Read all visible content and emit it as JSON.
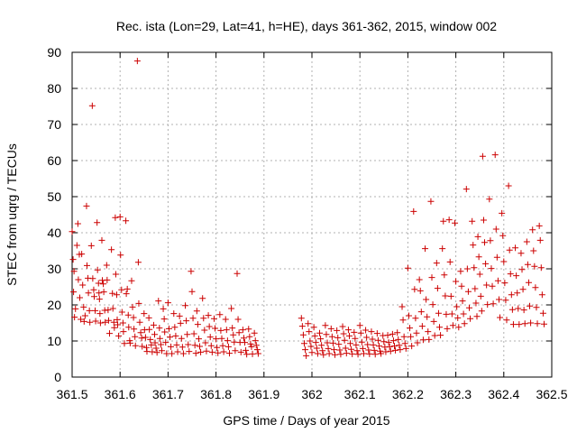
{
  "chart_data": {
    "type": "scatter",
    "title": "Rec. ista (Lon=29, Lat=41, h=HE), days 361-362, 2015, window 002",
    "xlabel": "GPS time / Days of year 2015",
    "ylabel": "STEC from uqrg / TECUs",
    "xlim": [
      361.5,
      362.5
    ],
    "ylim": [
      0,
      90
    ],
    "x_ticks": [
      361.5,
      361.6,
      361.7,
      361.8,
      361.9,
      362.0,
      362.1,
      362.2,
      362.3,
      362.4,
      362.5
    ],
    "x_tick_labels": [
      "361.5",
      "361.6",
      "361.7",
      "361.8",
      "361.9",
      "362",
      "362.1",
      "362.2",
      "362.3",
      "362.4",
      "362.5"
    ],
    "y_ticks": [
      0,
      10,
      20,
      30,
      40,
      50,
      60,
      70,
      80,
      90
    ],
    "y_tick_labels": [
      "0",
      "10",
      "20",
      "30",
      "40",
      "50",
      "60",
      "70",
      "80",
      "90"
    ],
    "grid": true,
    "marker": "plus",
    "color": "#cc0000",
    "points": [
      [
        361.5,
        40.3
      ],
      [
        361.502,
        32.6
      ],
      [
        361.504,
        29.3
      ],
      [
        361.503,
        23.6
      ],
      [
        361.505,
        16.6
      ],
      [
        361.507,
        18.9
      ],
      [
        361.51,
        36.5
      ],
      [
        361.512,
        42.5
      ],
      [
        361.513,
        27.0
      ],
      [
        361.515,
        34.0
      ],
      [
        361.516,
        22.0
      ],
      [
        361.518,
        16.0
      ],
      [
        361.52,
        34.1
      ],
      [
        361.522,
        25.5
      ],
      [
        361.524,
        19.4
      ],
      [
        361.525,
        15.4
      ],
      [
        361.527,
        17.0
      ],
      [
        361.53,
        47.4
      ],
      [
        361.531,
        30.9
      ],
      [
        361.533,
        27.4
      ],
      [
        361.534,
        23.3
      ],
      [
        361.536,
        18.4
      ],
      [
        361.537,
        15.2
      ],
      [
        361.54,
        36.4
      ],
      [
        361.542,
        75.2
      ],
      [
        361.543,
        27.3
      ],
      [
        361.545,
        24.2
      ],
      [
        361.546,
        22.3
      ],
      [
        361.548,
        18.4
      ],
      [
        361.549,
        15.5
      ],
      [
        361.552,
        42.8
      ],
      [
        361.553,
        29.7
      ],
      [
        361.555,
        26.0
      ],
      [
        361.556,
        23.3
      ],
      [
        361.557,
        21.6
      ],
      [
        361.558,
        17.6
      ],
      [
        361.559,
        15.0
      ],
      [
        361.562,
        37.9
      ],
      [
        361.563,
        26.8
      ],
      [
        361.565,
        25.8
      ],
      [
        361.566,
        23.6
      ],
      [
        361.568,
        18.5
      ],
      [
        361.569,
        15.2
      ],
      [
        361.572,
        31.0
      ],
      [
        361.573,
        26.9
      ],
      [
        361.575,
        18.6
      ],
      [
        361.576,
        15.7
      ],
      [
        361.578,
        12.1
      ],
      [
        361.582,
        35.3
      ],
      [
        361.584,
        23.2
      ],
      [
        361.585,
        19.0
      ],
      [
        361.587,
        15.2
      ],
      [
        361.588,
        13.7
      ],
      [
        361.59,
        44.2
      ],
      [
        361.591,
        28.5
      ],
      [
        361.593,
        22.8
      ],
      [
        361.594,
        15.9
      ],
      [
        361.595,
        14.5
      ],
      [
        361.597,
        11.4
      ],
      [
        361.6,
        44.4
      ],
      [
        361.601,
        33.8
      ],
      [
        361.603,
        24.2
      ],
      [
        361.604,
        18.0
      ],
      [
        361.606,
        15.0
      ],
      [
        361.607,
        12.6
      ],
      [
        361.609,
        9.3
      ],
      [
        361.612,
        43.3
      ],
      [
        361.613,
        23.1
      ],
      [
        361.615,
        24.4
      ],
      [
        361.617,
        17.2
      ],
      [
        361.618,
        13.8
      ],
      [
        361.62,
        10.1
      ],
      [
        361.621,
        9.4
      ],
      [
        361.624,
        26.7
      ],
      [
        361.626,
        19.4
      ],
      [
        361.628,
        16.5
      ],
      [
        361.629,
        13.3
      ],
      [
        361.631,
        11.2
      ],
      [
        361.632,
        8.7
      ],
      [
        361.636,
        87.6
      ],
      [
        361.638,
        31.8
      ],
      [
        361.639,
        20.4
      ],
      [
        361.641,
        15.2
      ],
      [
        361.643,
        12.3
      ],
      [
        361.645,
        10.8
      ],
      [
        361.646,
        8.5
      ],
      [
        361.65,
        17.6
      ],
      [
        361.651,
        13.1
      ],
      [
        361.653,
        11.0
      ],
      [
        361.655,
        8.2
      ],
      [
        361.656,
        7.1
      ],
      [
        361.66,
        16.4
      ],
      [
        361.661,
        13.2
      ],
      [
        361.663,
        10.4
      ],
      [
        361.665,
        8.9
      ],
      [
        361.667,
        7.0
      ],
      [
        361.67,
        14.4
      ],
      [
        361.672,
        11.8
      ],
      [
        361.673,
        9.5
      ],
      [
        361.675,
        8.0
      ],
      [
        361.677,
        6.8
      ],
      [
        361.68,
        21.1
      ],
      [
        361.682,
        13.6
      ],
      [
        361.683,
        10.7
      ],
      [
        361.685,
        9.0
      ],
      [
        361.687,
        7.3
      ],
      [
        361.69,
        18.9
      ],
      [
        361.692,
        16.1
      ],
      [
        361.693,
        12.5
      ],
      [
        361.695,
        9.6
      ],
      [
        361.697,
        6.5
      ],
      [
        361.7,
        20.6
      ],
      [
        361.702,
        13.4
      ],
      [
        361.704,
        11.1
      ],
      [
        361.706,
        8.4
      ],
      [
        361.708,
        6.5
      ],
      [
        361.712,
        17.6
      ],
      [
        361.714,
        13.8
      ],
      [
        361.716,
        11.4
      ],
      [
        361.718,
        8.9
      ],
      [
        361.72,
        7.0
      ],
      [
        361.724,
        16.9
      ],
      [
        361.726,
        14.9
      ],
      [
        361.728,
        10.7
      ],
      [
        361.73,
        8.3
      ],
      [
        361.732,
        6.5
      ],
      [
        361.736,
        19.8
      ],
      [
        361.738,
        15.6
      ],
      [
        361.74,
        11.8
      ],
      [
        361.742,
        9.0
      ],
      [
        361.744,
        7.1
      ],
      [
        361.748,
        29.3
      ],
      [
        361.75,
        23.7
      ],
      [
        361.752,
        16.3
      ],
      [
        361.754,
        12.0
      ],
      [
        361.756,
        8.8
      ],
      [
        361.758,
        6.6
      ],
      [
        361.76,
        18.3
      ],
      [
        361.762,
        14.6
      ],
      [
        361.764,
        10.6
      ],
      [
        361.766,
        8.5
      ],
      [
        361.768,
        6.9
      ],
      [
        361.772,
        21.8
      ],
      [
        361.774,
        16.3
      ],
      [
        361.776,
        13.0
      ],
      [
        361.778,
        9.5
      ],
      [
        361.78,
        7.2
      ],
      [
        361.784,
        17.1
      ],
      [
        361.786,
        14.0
      ],
      [
        361.788,
        11.1
      ],
      [
        361.79,
        8.7
      ],
      [
        361.792,
        6.9
      ],
      [
        361.796,
        16.2
      ],
      [
        361.798,
        13.5
      ],
      [
        361.8,
        10.6
      ],
      [
        361.802,
        8.2
      ],
      [
        361.804,
        6.7
      ],
      [
        361.808,
        17.3
      ],
      [
        361.81,
        12.9
      ],
      [
        361.812,
        10.7
      ],
      [
        361.814,
        8.7
      ],
      [
        361.816,
        7.0
      ],
      [
        361.82,
        16.0
      ],
      [
        361.822,
        13.1
      ],
      [
        361.824,
        10.1
      ],
      [
        361.826,
        8.4
      ],
      [
        361.828,
        6.6
      ],
      [
        361.832,
        19.0
      ],
      [
        361.834,
        13.6
      ],
      [
        361.836,
        11.7
      ],
      [
        361.838,
        9.7
      ],
      [
        361.84,
        7.3
      ],
      [
        361.844,
        28.7
      ],
      [
        361.846,
        16.0
      ],
      [
        361.848,
        12.3
      ],
      [
        361.85,
        9.6
      ],
      [
        361.852,
        6.9
      ],
      [
        361.856,
        13.1
      ],
      [
        361.858,
        10.8
      ],
      [
        361.86,
        9.6
      ],
      [
        361.862,
        7.4
      ],
      [
        361.864,
        6.3
      ],
      [
        361.868,
        13.3
      ],
      [
        361.87,
        11.2
      ],
      [
        361.872,
        9.2
      ],
      [
        361.874,
        8.4
      ],
      [
        361.876,
        6.4
      ],
      [
        361.88,
        12.2
      ],
      [
        361.882,
        10.1
      ],
      [
        361.884,
        8.8
      ],
      [
        361.886,
        7.6
      ],
      [
        361.888,
        6.5
      ],
      [
        361.978,
        16.3
      ],
      [
        361.98,
        14.1
      ],
      [
        361.982,
        11.7
      ],
      [
        361.984,
        9.3
      ],
      [
        361.986,
        7.6
      ],
      [
        361.988,
        5.9
      ],
      [
        361.992,
        14.8
      ],
      [
        361.994,
        12.6
      ],
      [
        361.996,
        10.0
      ],
      [
        361.998,
        8.5
      ],
      [
        362.0,
        6.8
      ],
      [
        362.004,
        13.8
      ],
      [
        362.006,
        11.4
      ],
      [
        362.008,
        9.6
      ],
      [
        362.01,
        8.0
      ],
      [
        362.012,
        6.5
      ],
      [
        362.016,
        12.2
      ],
      [
        362.018,
        10.6
      ],
      [
        362.02,
        8.8
      ],
      [
        362.022,
        7.3
      ],
      [
        362.024,
        6.2
      ],
      [
        362.028,
        14.3
      ],
      [
        362.03,
        11.8
      ],
      [
        362.032,
        9.5
      ],
      [
        362.034,
        7.9
      ],
      [
        362.036,
        6.5
      ],
      [
        362.04,
        13.4
      ],
      [
        362.042,
        11.2
      ],
      [
        362.044,
        9.4
      ],
      [
        362.046,
        7.6
      ],
      [
        362.048,
        6.2
      ],
      [
        362.052,
        12.9
      ],
      [
        362.054,
        10.9
      ],
      [
        362.056,
        9.1
      ],
      [
        362.058,
        7.5
      ],
      [
        362.06,
        6.3
      ],
      [
        362.064,
        14.0
      ],
      [
        362.066,
        12.0
      ],
      [
        362.068,
        10.2
      ],
      [
        362.07,
        8.0
      ],
      [
        362.072,
        6.6
      ],
      [
        362.076,
        13.1
      ],
      [
        362.078,
        11.4
      ],
      [
        362.08,
        9.3
      ],
      [
        362.082,
        7.7
      ],
      [
        362.084,
        6.4
      ],
      [
        362.088,
        12.4
      ],
      [
        362.09,
        10.7
      ],
      [
        362.092,
        8.9
      ],
      [
        362.094,
        7.3
      ],
      [
        362.096,
        6.3
      ],
      [
        362.1,
        14.3
      ],
      [
        362.102,
        12.2
      ],
      [
        362.104,
        9.7
      ],
      [
        362.106,
        7.9
      ],
      [
        362.108,
        6.5
      ],
      [
        362.112,
        13.0
      ],
      [
        362.114,
        11.0
      ],
      [
        362.116,
        9.0
      ],
      [
        362.118,
        7.5
      ],
      [
        362.12,
        6.4
      ],
      [
        362.124,
        12.6
      ],
      [
        362.126,
        10.5
      ],
      [
        362.128,
        8.9
      ],
      [
        362.13,
        7.4
      ],
      [
        362.132,
        6.3
      ],
      [
        362.136,
        12.1
      ],
      [
        362.138,
        10.2
      ],
      [
        362.14,
        8.6
      ],
      [
        362.142,
        7.2
      ],
      [
        362.144,
        6.5
      ],
      [
        362.148,
        11.5
      ],
      [
        362.15,
        9.8
      ],
      [
        362.152,
        8.3
      ],
      [
        362.154,
        7.0
      ],
      [
        362.158,
        11.6
      ],
      [
        362.16,
        9.6
      ],
      [
        362.162,
        8.4
      ],
      [
        362.164,
        7.2
      ],
      [
        362.168,
        11.9
      ],
      [
        362.17,
        10.1
      ],
      [
        362.172,
        8.6
      ],
      [
        362.174,
        7.4
      ],
      [
        362.178,
        12.3
      ],
      [
        362.18,
        10.4
      ],
      [
        362.182,
        8.8
      ],
      [
        362.184,
        7.6
      ],
      [
        362.188,
        19.5
      ],
      [
        362.19,
        15.8
      ],
      [
        362.192,
        11.2
      ],
      [
        362.194,
        9.3
      ],
      [
        362.196,
        7.9
      ],
      [
        362.2,
        30.2
      ],
      [
        362.202,
        17.0
      ],
      [
        362.204,
        13.6
      ],
      [
        362.206,
        11.2
      ],
      [
        362.208,
        8.6
      ],
      [
        362.212,
        45.9
      ],
      [
        362.214,
        24.3
      ],
      [
        362.216,
        16.3
      ],
      [
        362.218,
        12.2
      ],
      [
        362.22,
        9.5
      ],
      [
        362.224,
        27.0
      ],
      [
        362.226,
        23.9
      ],
      [
        362.228,
        18.1
      ],
      [
        362.23,
        14.1
      ],
      [
        362.232,
        10.3
      ],
      [
        362.236,
        35.6
      ],
      [
        362.238,
        21.5
      ],
      [
        362.24,
        16.7
      ],
      [
        362.242,
        12.6
      ],
      [
        362.244,
        10.4
      ],
      [
        362.248,
        48.7
      ],
      [
        362.25,
        27.6
      ],
      [
        362.252,
        20.1
      ],
      [
        362.254,
        15.4
      ],
      [
        362.256,
        11.5
      ],
      [
        362.26,
        31.6
      ],
      [
        362.262,
        24.6
      ],
      [
        362.264,
        17.7
      ],
      [
        362.266,
        13.8
      ],
      [
        362.268,
        11.6
      ],
      [
        362.272,
        35.6
      ],
      [
        362.274,
        43.2
      ],
      [
        362.276,
        28.3
      ],
      [
        362.278,
        22.5
      ],
      [
        362.28,
        17.4
      ],
      [
        362.282,
        13.4
      ],
      [
        362.286,
        43.6
      ],
      [
        362.288,
        31.9
      ],
      [
        362.29,
        22.4
      ],
      [
        362.292,
        17.5
      ],
      [
        362.294,
        14.3
      ],
      [
        362.298,
        42.7
      ],
      [
        362.3,
        26.5
      ],
      [
        362.302,
        19.5
      ],
      [
        362.304,
        16.4
      ],
      [
        362.306,
        13.8
      ],
      [
        362.31,
        29.3
      ],
      [
        362.312,
        25.2
      ],
      [
        362.314,
        21.1
      ],
      [
        362.316,
        17.5
      ],
      [
        362.318,
        14.8
      ],
      [
        362.322,
        52.1
      ],
      [
        362.324,
        30.0
      ],
      [
        362.326,
        23.7
      ],
      [
        362.328,
        19.2
      ],
      [
        362.33,
        16.2
      ],
      [
        362.334,
        43.2
      ],
      [
        362.336,
        36.6
      ],
      [
        362.338,
        30.3
      ],
      [
        362.34,
        24.5
      ],
      [
        362.342,
        20.5
      ],
      [
        362.344,
        16.8
      ],
      [
        362.346,
        38.9
      ],
      [
        362.348,
        33.3
      ],
      [
        362.35,
        28.5
      ],
      [
        362.352,
        22.4
      ],
      [
        362.354,
        18.3
      ],
      [
        362.356,
        61.2
      ],
      [
        362.358,
        43.5
      ],
      [
        362.36,
        37.3
      ],
      [
        362.362,
        31.4
      ],
      [
        362.364,
        25.5
      ],
      [
        362.366,
        20.1
      ],
      [
        362.37,
        49.3
      ],
      [
        362.372,
        37.8
      ],
      [
        362.374,
        30.1
      ],
      [
        362.376,
        25.2
      ],
      [
        362.378,
        20.3
      ],
      [
        362.382,
        61.6
      ],
      [
        362.384,
        41.0
      ],
      [
        362.386,
        33.2
      ],
      [
        362.388,
        26.7
      ],
      [
        362.39,
        21.5
      ],
      [
        362.392,
        16.5
      ],
      [
        362.396,
        45.4
      ],
      [
        362.398,
        39.2
      ],
      [
        362.4,
        32.0
      ],
      [
        362.402,
        26.1
      ],
      [
        362.404,
        21.3
      ],
      [
        362.406,
        15.8
      ],
      [
        362.41,
        53.0
      ],
      [
        362.412,
        35.2
      ],
      [
        362.414,
        28.6
      ],
      [
        362.416,
        22.8
      ],
      [
        362.418,
        18.7
      ],
      [
        362.42,
        14.6
      ],
      [
        362.424,
        35.8
      ],
      [
        362.426,
        28.1
      ],
      [
        362.428,
        23.3
      ],
      [
        362.43,
        19.0
      ],
      [
        362.432,
        14.6
      ],
      [
        362.436,
        34.3
      ],
      [
        362.438,
        29.8
      ],
      [
        362.44,
        24.3
      ],
      [
        362.442,
        18.6
      ],
      [
        362.444,
        14.8
      ],
      [
        362.448,
        37.5
      ],
      [
        362.45,
        31.2
      ],
      [
        362.452,
        26.2
      ],
      [
        362.454,
        19.7
      ],
      [
        362.456,
        15.0
      ],
      [
        362.46,
        40.8
      ],
      [
        362.462,
        35.0
      ],
      [
        362.464,
        30.7
      ],
      [
        362.466,
        24.8
      ],
      [
        362.468,
        19.3
      ],
      [
        362.47,
        14.8
      ],
      [
        362.474,
        41.9
      ],
      [
        362.476,
        37.9
      ],
      [
        362.478,
        30.3
      ],
      [
        362.48,
        22.8
      ],
      [
        362.482,
        17.7
      ],
      [
        362.484,
        14.7
      ]
    ]
  }
}
